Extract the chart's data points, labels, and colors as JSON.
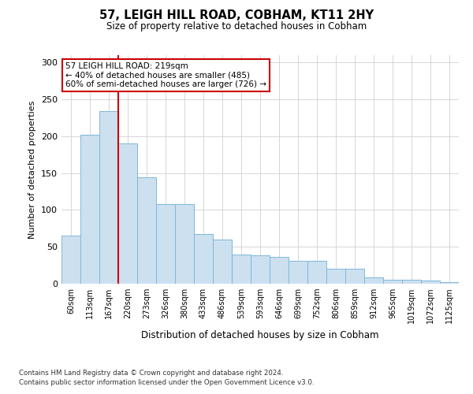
{
  "title1": "57, LEIGH HILL ROAD, COBHAM, KT11 2HY",
  "title2": "Size of property relative to detached houses in Cobham",
  "xlabel": "Distribution of detached houses by size in Cobham",
  "ylabel": "Number of detached properties",
  "footnote1": "Contains HM Land Registry data © Crown copyright and database right 2024.",
  "footnote2": "Contains public sector information licensed under the Open Government Licence v3.0.",
  "categories": [
    "60sqm",
    "113sqm",
    "167sqm",
    "220sqm",
    "273sqm",
    "326sqm",
    "380sqm",
    "433sqm",
    "486sqm",
    "539sqm",
    "593sqm",
    "646sqm",
    "699sqm",
    "752sqm",
    "806sqm",
    "859sqm",
    "912sqm",
    "965sqm",
    "1019sqm",
    "1072sqm",
    "1125sqm"
  ],
  "values": [
    65,
    202,
    234,
    190,
    144,
    108,
    108,
    67,
    60,
    40,
    38,
    36,
    31,
    31,
    20,
    20,
    9,
    5,
    5,
    4,
    2
  ],
  "bar_color": "#cce0f0",
  "bar_edge_color": "#7eb8d8",
  "vline_x_idx": 3,
  "vline_color": "#cc0000",
  "annotation_text": "57 LEIGH HILL ROAD: 219sqm\n← 40% of detached houses are smaller (485)\n60% of semi-detached houses are larger (726) →",
  "annotation_box_color": "#ffffff",
  "annotation_box_edge": "#cc0000",
  "ylim": [
    0,
    310
  ],
  "yticks": [
    0,
    50,
    100,
    150,
    200,
    250,
    300
  ],
  "bg_color": "#ffffff",
  "grid_color": "#d0d0d0"
}
